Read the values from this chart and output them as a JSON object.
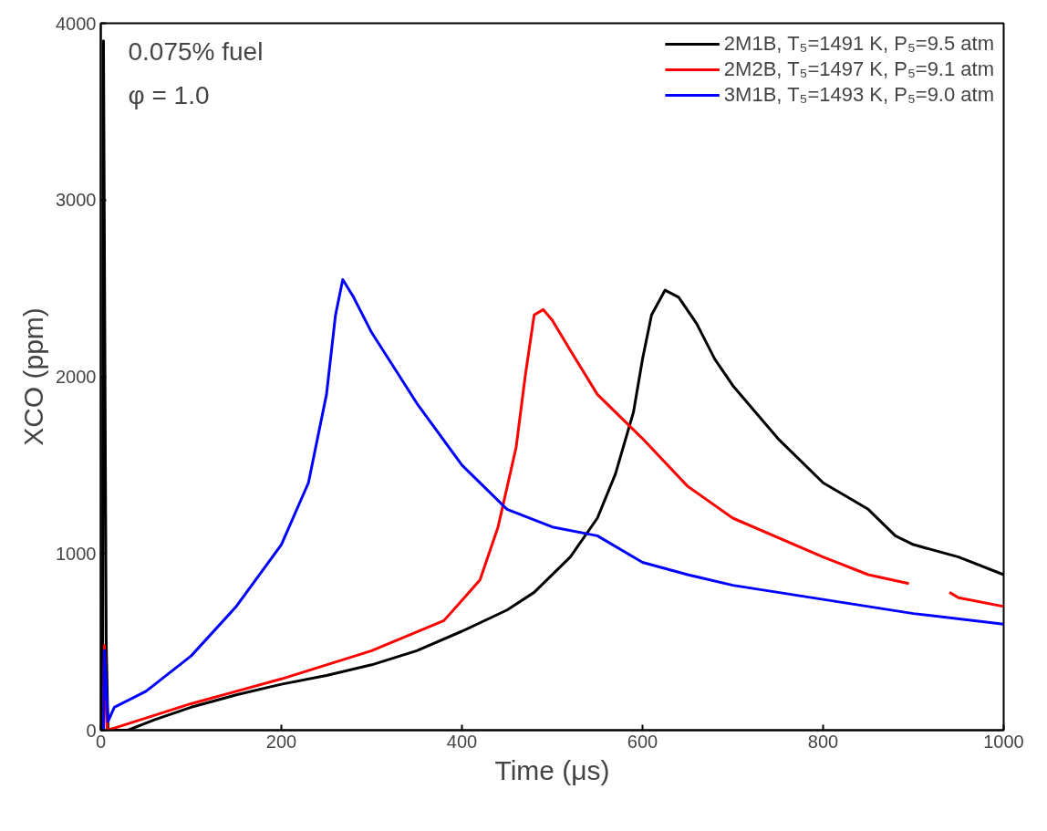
{
  "chart_data": {
    "type": "line",
    "xlabel": "Time (μs)",
    "ylabel": "XCO (ppm)",
    "xlim": [
      0,
      1000
    ],
    "xticks": [
      0,
      200,
      400,
      600,
      800,
      1000
    ],
    "ylim": [
      0,
      4000
    ],
    "yticks": [
      0,
      1000,
      2000,
      3000,
      4000
    ],
    "grid": false,
    "legend": "top right",
    "marker": "none",
    "line_style": "solid",
    "annotations": [
      "0.075% fuel",
      "φ = 1.0"
    ],
    "series": [
      {
        "name": "2M1B, T₅=1491 K, P₅=9.5 atm",
        "color": "#000000",
        "x": [
          2,
          3,
          6,
          8,
          30,
          60,
          100,
          150,
          200,
          250,
          300,
          350,
          400,
          450,
          480,
          520,
          550,
          570,
          590,
          600,
          610,
          625,
          640,
          660,
          680,
          700,
          750,
          800,
          850,
          880,
          900,
          950,
          1000
        ],
        "values": [
          0,
          3900,
          500,
          0,
          0,
          60,
          130,
          200,
          260,
          310,
          370,
          450,
          560,
          680,
          780,
          980,
          1200,
          1450,
          1800,
          2100,
          2350,
          2490,
          2450,
          2300,
          2100,
          1950,
          1650,
          1400,
          1250,
          1100,
          1050,
          980,
          880
        ]
      },
      {
        "name": "2M2B, T₅=1497 K, P₅=9.1 atm",
        "color": "#ff0000",
        "x": [
          3,
          4,
          7,
          20,
          100,
          200,
          300,
          380,
          420,
          440,
          460,
          470,
          480,
          490,
          500,
          520,
          550,
          600,
          650,
          700,
          800,
          850,
          895,
          920,
          940,
          950,
          1000
        ],
        "values": [
          0,
          480,
          0,
          20,
          150,
          290,
          450,
          620,
          850,
          1150,
          1600,
          2000,
          2350,
          2380,
          2320,
          2150,
          1900,
          1650,
          1380,
          1200,
          980,
          880,
          830,
          null,
          780,
          750,
          700
        ]
      },
      {
        "name": "3M1B, T₅=1493 K, P₅=9.0 atm",
        "color": "#0000ff",
        "x": [
          3,
          4,
          8,
          15,
          50,
          100,
          150,
          200,
          230,
          250,
          260,
          268,
          280,
          300,
          350,
          400,
          450,
          500,
          550,
          600,
          650,
          700,
          800,
          900,
          1000
        ],
        "values": [
          0,
          450,
          50,
          130,
          220,
          420,
          700,
          1050,
          1400,
          1900,
          2350,
          2550,
          2450,
          2250,
          1850,
          1500,
          1250,
          1150,
          1100,
          950,
          880,
          820,
          740,
          660,
          600
        ]
      }
    ]
  }
}
